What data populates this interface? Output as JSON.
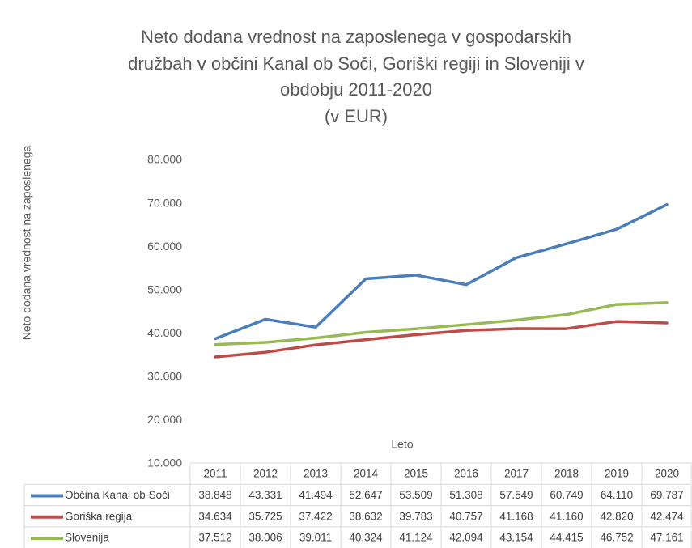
{
  "chart_data": {
    "type": "line",
    "title": [
      "Neto dodana vrednost na zaposlenega v gospodarskih",
      "družbah v občini Kanal ob Soči,  Goriški regiji in Sloveniji v",
      "obdobju 2011-2020"
    ],
    "subtitle": "(v EUR)",
    "y_label": "Neto dodana vrednost na zaposlenega",
    "x_label": "Leto",
    "categories": [
      "2011",
      "2012",
      "2013",
      "2014",
      "2015",
      "2016",
      "2017",
      "2018",
      "2019",
      "2020"
    ],
    "series": [
      {
        "name": "Občina Kanal ob Soči",
        "color": "#4a7ebb",
        "values": [
          38848,
          43331,
          41494,
          52647,
          53509,
          51308,
          57549,
          60749,
          64110,
          69787
        ],
        "value_labels": [
          "38.848",
          "43.331",
          "41.494",
          "52.647",
          "53.509",
          "51.308",
          "57.549",
          "60.749",
          "64.110",
          "69.787"
        ]
      },
      {
        "name": "Goriška regija",
        "color": "#be4b48",
        "values": [
          34634,
          35725,
          37422,
          38632,
          39783,
          40757,
          41168,
          41160,
          42820,
          42474
        ],
        "value_labels": [
          "34.634",
          "35.725",
          "37.422",
          "38.632",
          "39.783",
          "40.757",
          "41.168",
          "41.160",
          "42.820",
          "42.474"
        ]
      },
      {
        "name": "Slovenija",
        "color": "#98b954",
        "values": [
          37512,
          38006,
          39011,
          40324,
          41124,
          42094,
          43154,
          44415,
          46752,
          47161
        ],
        "value_labels": [
          "37.512",
          "38.006",
          "39.011",
          "40.324",
          "41.124",
          "42.094",
          "43.154",
          "44.415",
          "46.752",
          "47.161"
        ]
      }
    ],
    "ylim": [
      10000,
      80000
    ],
    "yticks": [
      {
        "value": 10000,
        "label": "10.000"
      },
      {
        "value": 20000,
        "label": "20.000"
      },
      {
        "value": 30000,
        "label": "30.000"
      },
      {
        "value": 40000,
        "label": "40.000"
      },
      {
        "value": 50000,
        "label": "50.000"
      },
      {
        "value": 60000,
        "label": "60.000"
      },
      {
        "value": 70000,
        "label": "70.000"
      },
      {
        "value": 80000,
        "label": "80.000"
      }
    ],
    "grid": false,
    "data_table": true
  }
}
